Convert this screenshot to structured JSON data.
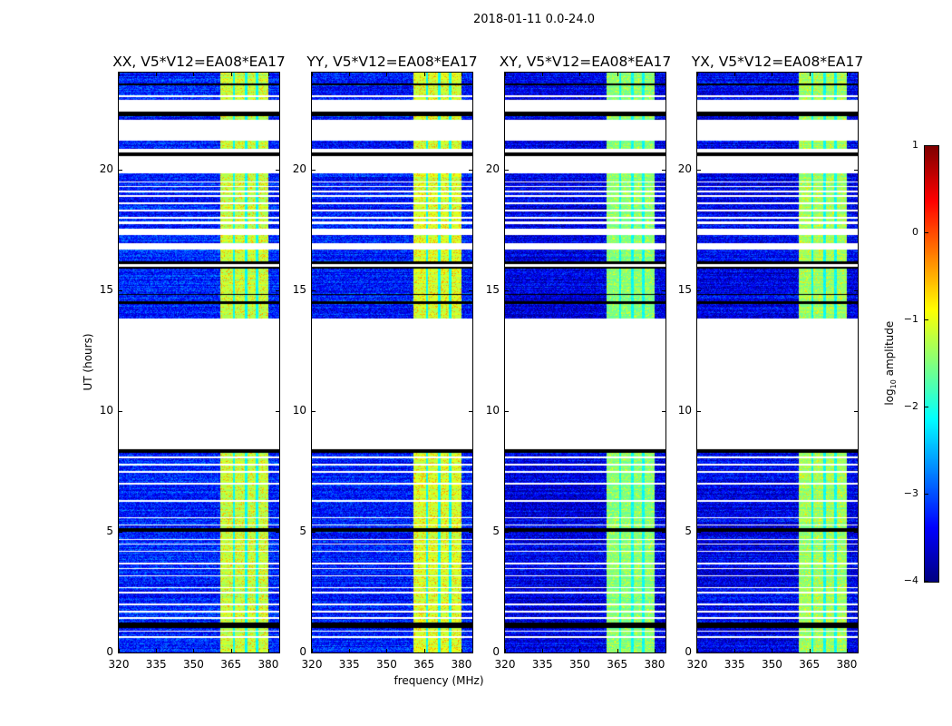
{
  "chart_data": {
    "type": "heatmap",
    "title": "2018-01-11 0.0-24.0",
    "xlabel": "frequency (MHz)",
    "ylabel": "UT (hours)",
    "xlim": [
      320,
      384.4
    ],
    "ylim": [
      0,
      24
    ],
    "xticks": [
      "320",
      "335",
      "350",
      "365",
      "380"
    ],
    "yticks": [
      "0",
      "5",
      "10",
      "15",
      "20"
    ],
    "panels": [
      {
        "title": "XX, V5*V12=EA08*EA17",
        "background_level": -3.2,
        "band_level": -1.2,
        "hot_level": -0.5
      },
      {
        "title": "YY, V5*V12=EA08*EA17",
        "background_level": -3.25,
        "band_level": -1.1,
        "hot_level": -0.45
      },
      {
        "title": "XY, V5*V12=EA08*EA17",
        "background_level": -3.5,
        "band_level": -1.5,
        "hot_level": -1.0
      },
      {
        "title": "YX, V5*V12=EA08*EA17",
        "background_level": -3.45,
        "band_level": -1.4,
        "hot_level": -0.8
      }
    ],
    "band_mhz": [
      360.7,
      380.0
    ],
    "band_channel_lines_mhz": [
      366.3,
      371.2,
      375.5
    ],
    "gaps_hours": [
      [
        8.45,
        13.85
      ],
      [
        16.0,
        16.1
      ],
      [
        16.7,
        16.95
      ],
      [
        17.3,
        17.55
      ],
      [
        17.75,
        17.85
      ],
      [
        19.85,
        20.55
      ],
      [
        20.7,
        20.85
      ],
      [
        21.2,
        22.05
      ],
      [
        22.4,
        22.9
      ]
    ],
    "flagged_hours": [
      [
        1.05,
        1.25
      ],
      [
        5.0,
        5.15
      ],
      [
        8.3,
        8.45
      ],
      [
        14.45,
        14.55
      ],
      [
        14.8,
        14.86
      ],
      [
        15.9,
        16.0
      ],
      [
        16.1,
        16.2
      ],
      [
        20.55,
        20.7
      ],
      [
        22.2,
        22.4
      ],
      [
        23.5,
        23.56
      ]
    ],
    "white_lines_hours": [
      0.65,
      0.9,
      1.45,
      1.7,
      2.0,
      2.5,
      2.7,
      3.2,
      3.5,
      3.7,
      4.2,
      4.5,
      4.7,
      5.3,
      5.6,
      6.3,
      7.0,
      7.5,
      7.8,
      8.1,
      18.0,
      18.3,
      18.6,
      18.9,
      19.1,
      19.3,
      19.5,
      23.05
    ],
    "colorbar": {
      "label": "log10 amplitude",
      "label_main": "log",
      "label_sub": "10",
      "label_rest": " amplitude",
      "range": [
        -4,
        1
      ],
      "ticks": [
        "−4",
        "−3",
        "−2",
        "−1",
        "0",
        "1"
      ],
      "colormap": "jet"
    }
  }
}
